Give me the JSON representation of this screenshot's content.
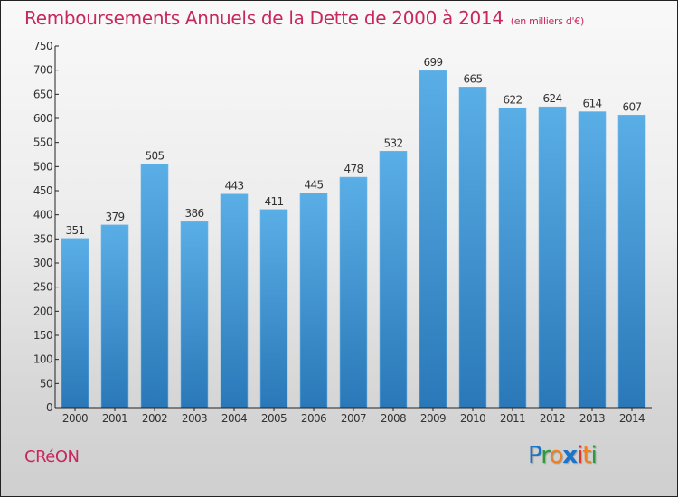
{
  "header": {
    "title": "Remboursements Annuels de la Dette de 2000 à 2014",
    "unit": "(en milliers d'€)"
  },
  "footer": {
    "commune": "CRéON",
    "logo_letters": [
      {
        "char": "P",
        "color": "#1a74c9"
      },
      {
        "char": "r",
        "color": "#2e9a3c"
      },
      {
        "char": "o",
        "color": "#f08020"
      },
      {
        "char": "x",
        "color": "#1a74c9"
      },
      {
        "char": "i",
        "color": "#e0302a"
      },
      {
        "char": "t",
        "color": "#f08020"
      },
      {
        "char": "i",
        "color": "#2e9a3c"
      }
    ]
  },
  "colors": {
    "title": "#c8285f",
    "bar_top": "#5aaee6",
    "bar_bottom": "#2a78b8"
  },
  "chart_data": {
    "type": "bar",
    "title": "Remboursements Annuels de la Dette de 2000 à 2014",
    "subtitle": "(en milliers d'€)",
    "xlabel": "",
    "ylabel": "",
    "categories": [
      "2000",
      "2001",
      "2002",
      "2003",
      "2004",
      "2005",
      "2006",
      "2007",
      "2008",
      "2009",
      "2010",
      "2011",
      "2012",
      "2013",
      "2014"
    ],
    "values": [
      351,
      379,
      505,
      386,
      443,
      411,
      445,
      478,
      532,
      699,
      665,
      622,
      624,
      614,
      607
    ],
    "ylim": [
      0,
      750
    ],
    "yticks": [
      0,
      50,
      100,
      150,
      200,
      250,
      300,
      350,
      400,
      450,
      500,
      550,
      600,
      650,
      700,
      750
    ],
    "grid": false,
    "data_labels": true
  }
}
